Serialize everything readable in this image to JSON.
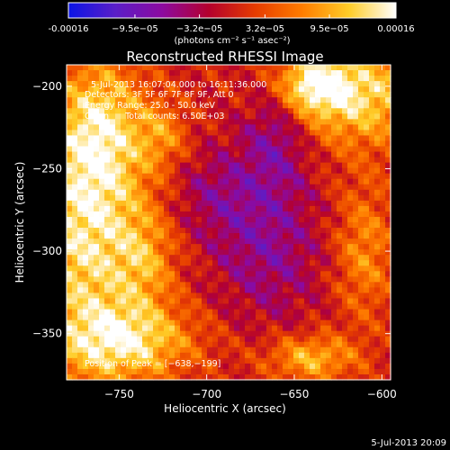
{
  "colorbar": {
    "ticks": [
      {
        "v": -0.00016,
        "label": "-0.00016"
      },
      {
        "v": -9.5e-05,
        "label": "−9.5e−05"
      },
      {
        "v": -3.2e-05,
        "label": "−3.2e−05"
      },
      {
        "v": 3.2e-05,
        "label": "3.2e−05"
      },
      {
        "v": 9.5e-05,
        "label": "9.5e−05"
      },
      {
        "v": 0.00016,
        "label": "0.00016"
      }
    ],
    "range": [
      -0.00016,
      0.00016
    ],
    "unit_label": "(photons cm⁻² s⁻¹ asec⁻²)",
    "colors": [
      "#0a14e6",
      "#5a1ec8",
      "#8c0aa0",
      "#b4002d",
      "#e63c00",
      "#ff7d00",
      "#ffcd28",
      "#ffffff"
    ]
  },
  "chart_data": {
    "type": "heatmap",
    "title": "Reconstructed RHESSI Image",
    "xlabel": "Heliocentric X (arcsec)",
    "ylabel": "Heliocentric Y (arcsec)",
    "xlim": [
      -780,
      -595
    ],
    "ylim": [
      -378,
      -187
    ],
    "xticks": [
      {
        "v": -750,
        "label": "−750"
      },
      {
        "v": -700,
        "label": "−700"
      },
      {
        "v": -650,
        "label": "−650"
      },
      {
        "v": -600,
        "label": "−600"
      }
    ],
    "yticks": [
      {
        "v": -200,
        "label": "−200"
      },
      {
        "v": -250,
        "label": "−250"
      },
      {
        "v": -300,
        "label": "−300"
      },
      {
        "v": -350,
        "label": "−350"
      }
    ],
    "grid": false,
    "peak": {
      "x": -638,
      "y": -199
    },
    "blobs": [
      {
        "x": -770,
        "y": -290,
        "sx": 26,
        "sy": 55,
        "a": 1.0
      },
      {
        "x": -760,
        "y": -225,
        "sx": 18,
        "sy": 30,
        "a": 0.7
      },
      {
        "x": -745,
        "y": -355,
        "sx": 28,
        "sy": 16,
        "a": 0.85
      },
      {
        "x": -615,
        "y": -205,
        "sx": 30,
        "sy": 22,
        "a": 0.95
      },
      {
        "x": -640,
        "y": -199,
        "sx": 14,
        "sy": 12,
        "a": 0.8
      },
      {
        "x": -640,
        "y": -365,
        "sx": 18,
        "sy": 10,
        "a": 0.75
      },
      {
        "x": -610,
        "y": -300,
        "sx": 12,
        "sy": 30,
        "a": 0.55
      },
      {
        "x": -725,
        "y": -230,
        "sx": 10,
        "sy": 14,
        "a": 0.45
      },
      {
        "x": -735,
        "y": -305,
        "sx": 12,
        "sy": 22,
        "a": 0.45
      },
      {
        "x": -660,
        "y": -228,
        "sx": 14,
        "sy": 25,
        "a": -0.55
      },
      {
        "x": -665,
        "y": -300,
        "sx": 22,
        "sy": 30,
        "a": -0.45
      },
      {
        "x": -695,
        "y": -265,
        "sx": 20,
        "sy": 20,
        "a": -0.35
      }
    ]
  },
  "overlay": {
    "time_range": "5-Jul-2013 16:07:04.000 to 16:11:36.000",
    "detectors": "Detectors: 3F 5F 6F 7F 8F 9F, Att 0",
    "energy": "Energy Range: 25.0 - 50.0 keV",
    "clean": "Clean      Total counts: 6.50E+03",
    "peak_label": "Position of Peak = [−638,−199]"
  },
  "footer": {
    "date": "5-Jul-2013 20:09"
  }
}
